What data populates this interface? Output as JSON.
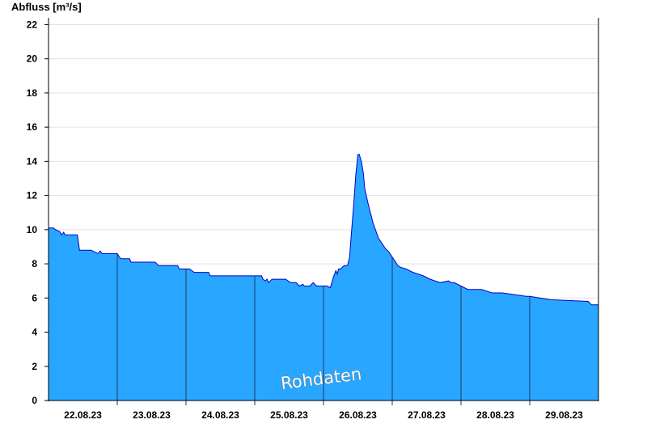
{
  "chart_data": {
    "type": "area",
    "ylabel": "Abfluss [m³/s]",
    "xlabel": "",
    "x_tick_labels": [
      "22.08.23",
      "23.08.23",
      "24.08.23",
      "25.08.23",
      "26.08.23",
      "27.08.23",
      "28.08.23",
      "29.08.23"
    ],
    "x_range_days": [
      0,
      8
    ],
    "ylim": [
      0,
      22.4
    ],
    "y_ticks": [
      0,
      2,
      4,
      6,
      8,
      10,
      12,
      14,
      16,
      18,
      20,
      22
    ],
    "grid": true,
    "annotation": "Rohdaten",
    "colors": {
      "fill": "#29a6ff",
      "line": "#0000cc",
      "grid": "#e2e2e2",
      "axis": "#000000"
    },
    "series": [
      {
        "x": [
          0,
          0.07,
          0.1,
          0.16,
          0.19,
          0.22,
          0.24,
          0.27,
          0.3,
          0.42,
          0.45,
          0.62,
          0.72,
          0.75,
          0.78,
          0.83,
          1.0,
          1.03,
          1.05,
          1.18,
          1.2,
          1.3,
          1.55,
          1.6,
          1.88,
          1.9,
          2.05,
          2.12,
          2.18,
          2.33,
          2.35,
          2.6,
          2.85,
          2.95,
          3.1,
          3.12,
          3.15,
          3.18,
          3.2,
          3.25,
          3.4,
          3.45,
          3.52,
          3.6,
          3.65,
          3.7,
          3.72,
          3.8,
          3.85,
          3.9,
          3.95,
          4.05,
          4.1,
          4.12,
          4.15,
          4.18,
          4.2,
          4.22,
          4.25,
          4.3,
          4.35,
          4.38,
          4.4,
          4.44,
          4.47,
          4.5,
          4.52,
          4.55,
          4.58,
          4.6,
          4.65,
          4.72,
          4.8,
          4.9,
          4.95,
          5.0,
          5.05,
          5.08,
          5.12,
          5.2,
          5.3,
          5.45,
          5.55,
          5.7,
          5.82,
          5.85,
          5.9,
          6.0,
          6.1,
          6.3,
          6.45,
          6.6,
          6.95,
          7.0,
          7.3,
          7.85,
          7.9,
          8.0
        ],
        "y": [
          10.1,
          10.1,
          10.0,
          9.9,
          9.7,
          9.85,
          9.7,
          9.7,
          9.7,
          9.7,
          8.8,
          8.8,
          8.6,
          8.75,
          8.6,
          8.6,
          8.6,
          8.4,
          8.3,
          8.3,
          8.1,
          8.1,
          8.1,
          7.9,
          7.9,
          7.7,
          7.7,
          7.5,
          7.5,
          7.5,
          7.3,
          7.3,
          7.3,
          7.3,
          7.3,
          7.1,
          7.0,
          7.1,
          6.9,
          7.1,
          7.1,
          7.1,
          6.9,
          6.9,
          6.7,
          6.8,
          6.7,
          6.7,
          6.9,
          6.7,
          6.7,
          6.7,
          6.6,
          6.9,
          7.3,
          7.6,
          7.4,
          7.7,
          7.7,
          7.9,
          7.9,
          8.4,
          9.5,
          11.5,
          13.2,
          14.4,
          14.4,
          14.0,
          13.3,
          12.4,
          11.5,
          10.4,
          9.5,
          8.9,
          8.7,
          8.4,
          8.1,
          7.9,
          7.8,
          7.7,
          7.5,
          7.3,
          7.1,
          6.9,
          7.0,
          6.9,
          6.9,
          6.7,
          6.5,
          6.5,
          6.3,
          6.3,
          6.1,
          6.1,
          5.9,
          5.8,
          5.6,
          5.6
        ]
      }
    ]
  }
}
